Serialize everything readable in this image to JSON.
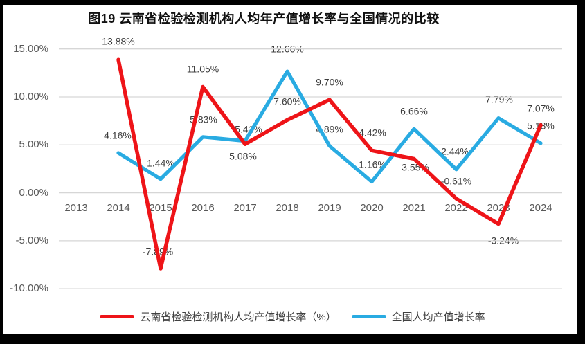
{
  "chart_data": {
    "type": "line",
    "title": "图19  云南省检验检测机构人均年产值增长率与全国情况的比较",
    "categories": [
      "2013",
      "2014",
      "2015",
      "2016",
      "2017",
      "2018",
      "2019",
      "2020",
      "2021",
      "2022",
      "2023",
      "2024"
    ],
    "y_ticks": [
      {
        "label": "15.00%",
        "value": 15
      },
      {
        "label": "10.00%",
        "value": 10
      },
      {
        "label": "5.00%",
        "value": 5
      },
      {
        "label": "0.00%",
        "value": 0
      },
      {
        "label": "-5.00%",
        "value": -5
      },
      {
        "label": "-10.00%",
        "value": -10
      }
    ],
    "ylim": [
      -10,
      15
    ],
    "grid": true,
    "legend_position": "bottom",
    "grid_color": "#d6d6d6",
    "series": [
      {
        "name": "云南省检验检测机构人均产值增长率（%）",
        "color": "#ee1418",
        "points": [
          {
            "x": "2014",
            "y": 13.88,
            "label": "13.88%",
            "dx": 0,
            "dy": -26
          },
          {
            "x": "2015",
            "y": -7.89,
            "label": "-7.89%",
            "dx": -4,
            "dy": -24
          },
          {
            "x": "2016",
            "y": 11.05,
            "label": "11.05%",
            "dx": 0,
            "dy": -25
          },
          {
            "x": "2017",
            "y": 5.08,
            "label": "5.08%",
            "dx": -3,
            "dy": 18
          },
          {
            "x": "2018",
            "y": 7.6,
            "label": "7.60%",
            "dx": 0,
            "dy": -26
          },
          {
            "x": "2019",
            "y": 9.7,
            "label": "9.70%",
            "dx": 0,
            "dy": -25
          },
          {
            "x": "2020",
            "y": 4.42,
            "label": "4.42%",
            "dx": 1,
            "dy": -25
          },
          {
            "x": "2021",
            "y": 3.55,
            "label": "3.55%",
            "dx": 2,
            "dy": 13
          },
          {
            "x": "2022",
            "y": -0.61,
            "label": "-0.61%",
            "dx": 0,
            "dy": -25
          },
          {
            "x": "2023",
            "y": -3.24,
            "label": "-3.24%",
            "dx": 7,
            "dy": 24
          },
          {
            "x": "2024",
            "y": 7.07,
            "label": "7.07%",
            "dx": 0,
            "dy": -24
          }
        ]
      },
      {
        "name": "全国人均产值增长率",
        "color": "#29abe2",
        "points": [
          {
            "x": "2014",
            "y": 4.16,
            "label": "4.16%",
            "dx": -1,
            "dy": -25
          },
          {
            "x": "2015",
            "y": 1.44,
            "label": "1.44%",
            "dx": 0,
            "dy": -23
          },
          {
            "x": "2016",
            "y": 5.83,
            "label": "5.83%",
            "dx": 1,
            "dy": -25
          },
          {
            "x": "2017",
            "y": 5.41,
            "label": "5.41%",
            "dx": 5,
            "dy": -17
          },
          {
            "x": "2018",
            "y": 12.66,
            "label": "12.66%",
            "dx": 0,
            "dy": -32
          },
          {
            "x": "2019",
            "y": 4.89,
            "label": "4.89%",
            "dx": 0,
            "dy": -24
          },
          {
            "x": "2020",
            "y": 1.16,
            "label": "1.16%",
            "dx": 1,
            "dy": -25
          },
          {
            "x": "2021",
            "y": 6.66,
            "label": "6.66%",
            "dx": 0,
            "dy": -25
          },
          {
            "x": "2022",
            "y": 2.44,
            "label": "2.44%",
            "dx": -2,
            "dy": -26
          },
          {
            "x": "2023",
            "y": 7.79,
            "label": "7.79%",
            "dx": 1,
            "dy": -27
          },
          {
            "x": "2024",
            "y": 5.18,
            "label": "5.18%",
            "dx": 0,
            "dy": -25
          }
        ]
      }
    ]
  }
}
